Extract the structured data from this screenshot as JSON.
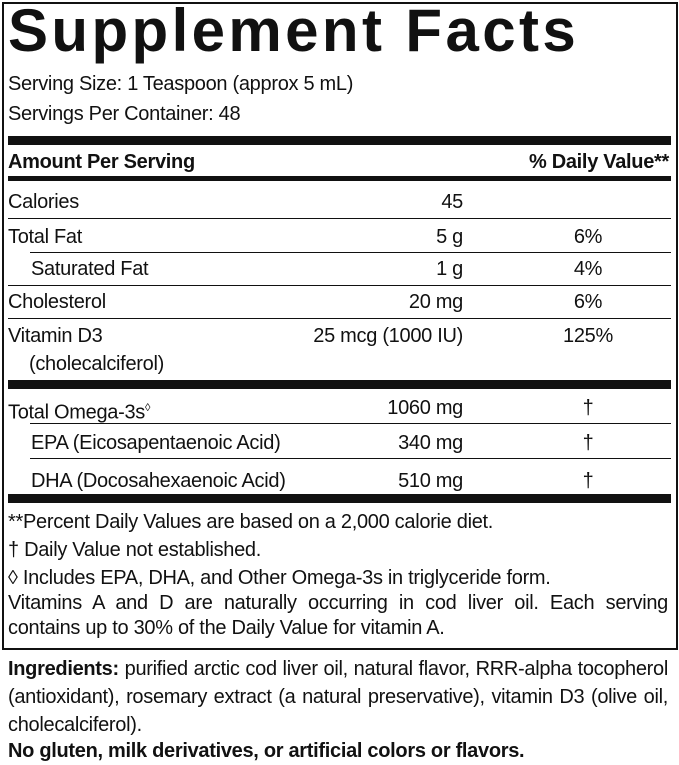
{
  "title": "Supplement Facts",
  "serving_size": "Serving Size: 1 Teaspoon (approx 5 mL)",
  "servings_per_container": "Servings Per Container: 48",
  "header": {
    "amount": "Amount Per Serving",
    "dv": "% Daily Value**"
  },
  "rows": [
    {
      "name": "Calories",
      "amount": "45",
      "dv": ""
    },
    {
      "name": "Total Fat",
      "amount": "5 g",
      "dv": "6%"
    },
    {
      "name": "Saturated Fat",
      "amount": "1 g",
      "dv": "4%"
    },
    {
      "name": "Cholesterol",
      "amount": "20 mg",
      "dv": "6%"
    },
    {
      "name": "Vitamin D3",
      "name2": "(cholecalciferol)",
      "amount": "25 mcg (1000 IU)",
      "dv": "125%"
    }
  ],
  "omega_rows": [
    {
      "name": "Total Omega-3s",
      "sup": "◊",
      "amount": "1060 mg",
      "dv": "†"
    },
    {
      "name": "EPA (Eicosapentaenoic Acid)",
      "amount": "340 mg",
      "dv": "†"
    },
    {
      "name": "DHA (Docosahexaenoic Acid)",
      "amount": "510 mg",
      "dv": "†"
    }
  ],
  "footnotes": [
    "**Percent Daily Values are based on a 2,000 calorie diet.",
    "† Daily Value not established.",
    "◊ Includes EPA, DHA, and Other Omega-3s in triglyceride form.",
    "Vitamins A and D are naturally occurring in cod liver oil. Each serving contains up to 30% of the Daily Value for vitamin A."
  ],
  "ingredients": {
    "label": "Ingredients:",
    "text": " purified arctic cod liver oil, natural flavor, RRR-alpha tocopherol (antioxidant), rosemary extract (a natural preservative), vitamin D3 (olive oil, cholecalciferol)."
  },
  "allergen_note": "No gluten, milk derivatives, or artificial colors or flavors."
}
